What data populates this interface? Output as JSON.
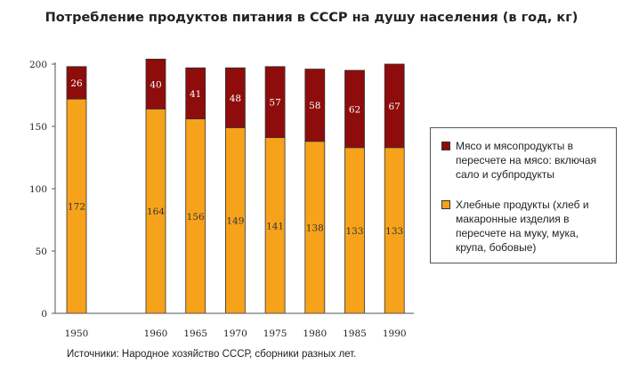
{
  "chart_data": {
    "type": "bar",
    "stacked": true,
    "title": "Потребление продуктов питания в СССР на душу населения (в год, кг)",
    "categories": [
      "1950",
      "1960",
      "1965",
      "1970",
      "1975",
      "1980",
      "1985",
      "1990"
    ],
    "series": [
      {
        "name": "Хлебные продукты (хлеб и макаронные изделия в пересчете на муку, мука, крупа, бобовые)",
        "color": "#f7a21b",
        "label_color": "#333333",
        "values": [
          172,
          164,
          156,
          149,
          141,
          138,
          133,
          133
        ]
      },
      {
        "name": "Мясо и мясопродукты в пересчете на мясо: включая сало и субпродукты",
        "color": "#8e0c0c",
        "label_color": "#ffffff",
        "values": [
          26,
          40,
          41,
          48,
          57,
          58,
          62,
          67
        ]
      }
    ],
    "ylim": [
      0,
      200
    ],
    "yticks": [
      0,
      50,
      100,
      150,
      200
    ],
    "xlabel": "",
    "ylabel": "",
    "grid": false,
    "legend_position": "right",
    "source": "Источники: Народное хозяйство СССР, сборники разных лет."
  }
}
